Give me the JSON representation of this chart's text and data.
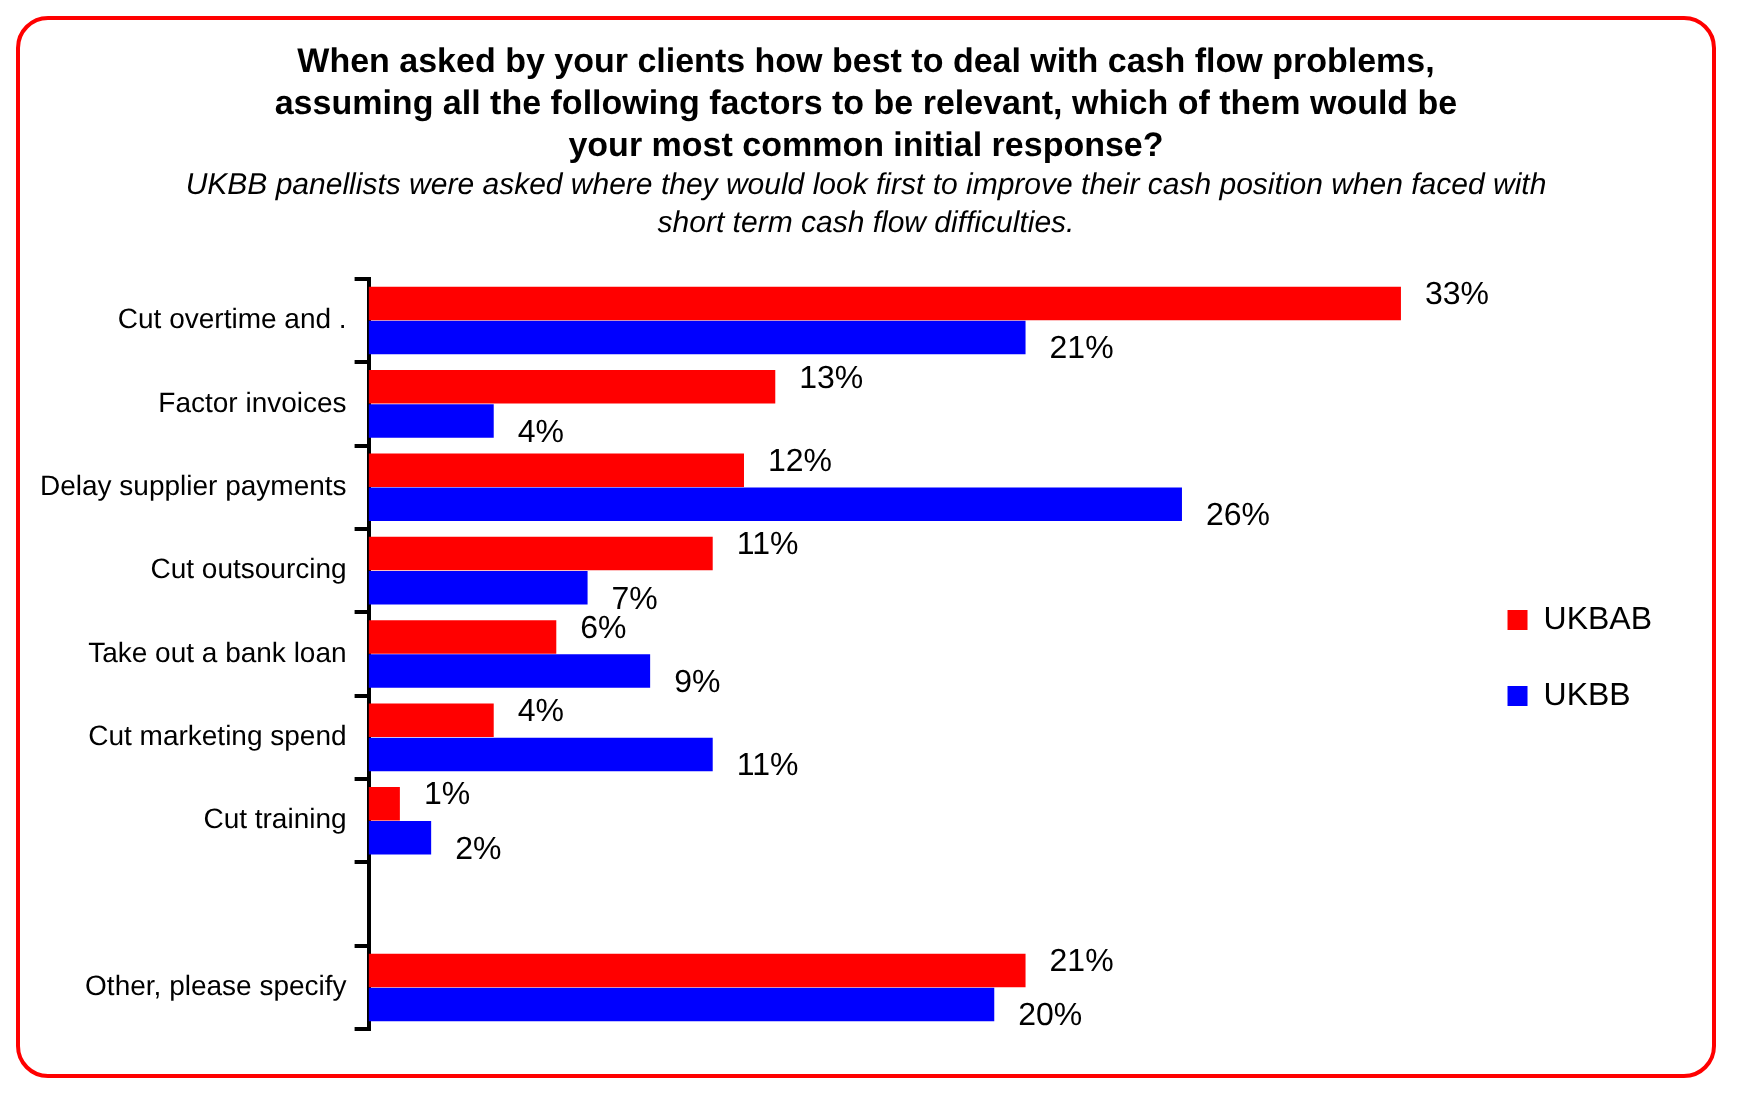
{
  "chart_data": {
    "type": "bar",
    "orientation": "horizontal",
    "title": "When asked by your clients how best to deal with cash flow problems, assuming all the following factors to be relevant, which of them would be your most common initial response?",
    "subtitle": "UKBB panellists were asked  where they would look first to improve their cash position when faced with short term cash flow difficulties.",
    "categories": [
      "Cut overtime and .",
      "Factor invoices",
      "Delay supplier payments",
      "Cut outsourcing",
      "Take out a bank loan",
      "Cut marketing spend",
      "Cut training",
      null,
      "Other, please specify"
    ],
    "series": [
      {
        "name": "UKBAB",
        "color": "#ff0000",
        "values": [
          33,
          13,
          12,
          11,
          6,
          4,
          1,
          null,
          21
        ],
        "value_labels": [
          "33%",
          "13%",
          "12%",
          "11%",
          "6%",
          "4%",
          "1%",
          null,
          "21%"
        ]
      },
      {
        "name": "UKBB",
        "color": "#0000ff",
        "values": [
          21,
          4,
          26,
          7,
          9,
          11,
          2,
          null,
          20
        ],
        "value_labels": [
          "21%",
          "4%",
          "26%",
          "7%",
          "9%",
          "11%",
          "2%",
          null,
          "20%"
        ]
      }
    ],
    "legend": "right",
    "grid": false
  }
}
